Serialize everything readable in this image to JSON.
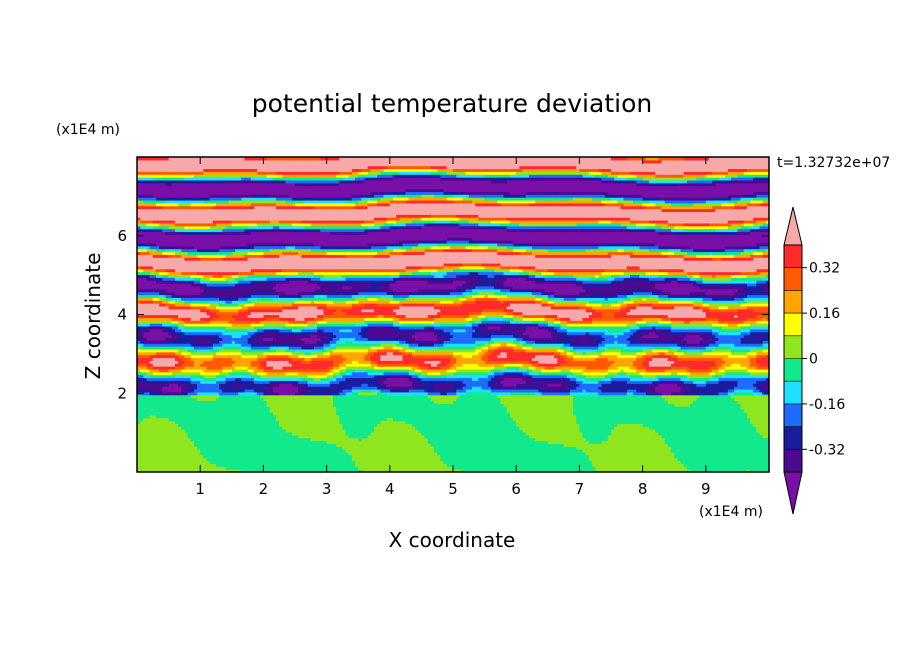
{
  "chart_data": {
    "type": "heatmap",
    "title": "potential temperature deviation",
    "xlabel": "X coordinate",
    "ylabel": "Z coordinate",
    "x_unit": "(x1E4 m)",
    "y_unit": "(x1E4 m)",
    "time_label": "t=1.32732e+07",
    "xlim": [
      0,
      10
    ],
    "ylim": [
      0,
      8
    ],
    "x_ticks": [
      1,
      2,
      3,
      4,
      5,
      6,
      7,
      8,
      9
    ],
    "y_ticks": [
      2,
      4,
      6
    ],
    "colorbar": {
      "levels": [
        -0.4,
        -0.32,
        -0.24,
        -0.16,
        -0.08,
        0,
        0.08,
        0.16,
        0.24,
        0.32,
        0.4
      ],
      "labels": [
        "0.32",
        "0.16",
        "0",
        "-0.16",
        "-0.32"
      ],
      "label_values": [
        0.32,
        0.16,
        0,
        -0.16,
        -0.32
      ],
      "colors": [
        "#4b0a8f",
        "#1c1c9e",
        "#1f6bff",
        "#1fe0ff",
        "#12e88c",
        "#8fe61f",
        "#ffff00",
        "#ffa500",
        "#ff5a00",
        "#ff2a2a"
      ],
      "under_color": "#7a0fa8",
      "over_color": "#f7a8a8"
    }
  }
}
